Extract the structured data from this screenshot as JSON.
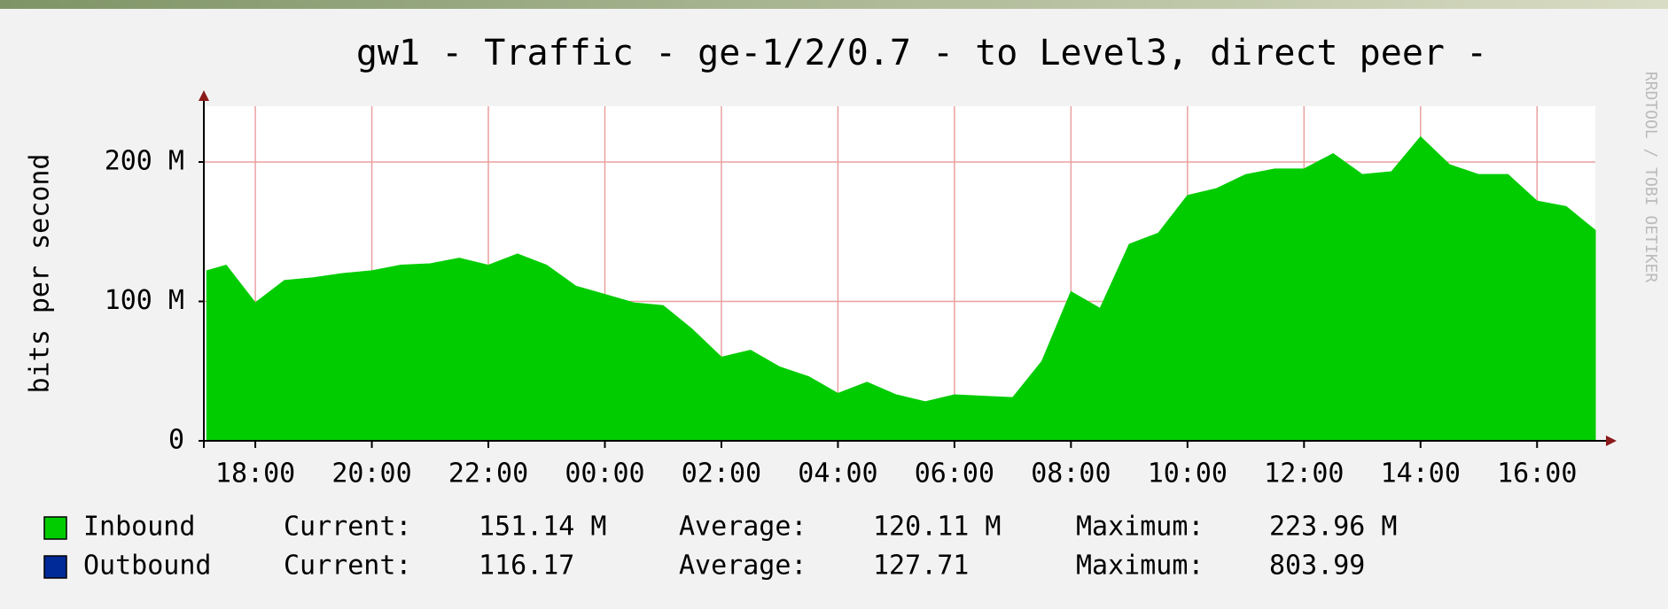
{
  "chart_data": {
    "type": "area",
    "title": "gw1 - Traffic - ge-1/2/0.7 - to Level3, direct peer    -",
    "y_label": "bits per second",
    "side_label": "RRDTOOL / TOBI OETIKER",
    "xlim": [
      "17:07",
      "17:00"
    ],
    "xticks": [
      "18:00",
      "20:00",
      "22:00",
      "00:00",
      "02:00",
      "04:00",
      "06:00",
      "08:00",
      "10:00",
      "12:00",
      "14:00",
      "16:00"
    ],
    "ylim": [
      0,
      240
    ],
    "yticks": [
      0,
      {
        "value": 100,
        "label": "100 M"
      },
      {
        "value": 200,
        "label": "200 M"
      }
    ],
    "grid": true,
    "x": [
      "17:10",
      "17:30",
      "18:00",
      "18:30",
      "19:00",
      "19:30",
      "20:00",
      "20:30",
      "21:00",
      "21:30",
      "22:00",
      "22:30",
      "23:00",
      "23:30",
      "00:00",
      "00:30",
      "01:00",
      "01:30",
      "02:00",
      "02:30",
      "03:00",
      "03:30",
      "04:00",
      "04:30",
      "05:00",
      "05:30",
      "06:00",
      "06:30",
      "07:00",
      "07:30",
      "08:00",
      "08:30",
      "09:00",
      "09:30",
      "10:00",
      "10:30",
      "11:00",
      "11:30",
      "12:00",
      "12:30",
      "13:00",
      "13:30",
      "14:00",
      "14:30",
      "15:00",
      "15:30",
      "16:00",
      "16:30",
      "17:00"
    ],
    "series": [
      {
        "name": "Inbound",
        "color": "#00cc00",
        "values": [
          122,
          126,
          99,
          115,
          117,
          120,
          122,
          126,
          127,
          131,
          126,
          134,
          126,
          111,
          105,
          99,
          97,
          80,
          60,
          65,
          53,
          46,
          34,
          42,
          33,
          28,
          33,
          32,
          31,
          57,
          107,
          95,
          141,
          149,
          176,
          181,
          191,
          195,
          195,
          206,
          191,
          193,
          218,
          198,
          191,
          191,
          172,
          168,
          151
        ],
        "stats": [
          {
            "label": "Current:",
            "text": "151.14 M"
          },
          {
            "label": "Average:",
            "text": "120.11 M"
          },
          {
            "label": "Maximum:",
            "text": "223.96 M"
          }
        ]
      },
      {
        "name": "Outbound",
        "color": "#002a97",
        "stats": [
          {
            "label": "Current:",
            "text": "116.17"
          },
          {
            "label": "Average:",
            "text": "127.71"
          },
          {
            "label": "Maximum:",
            "text": "803.99"
          }
        ]
      }
    ]
  }
}
